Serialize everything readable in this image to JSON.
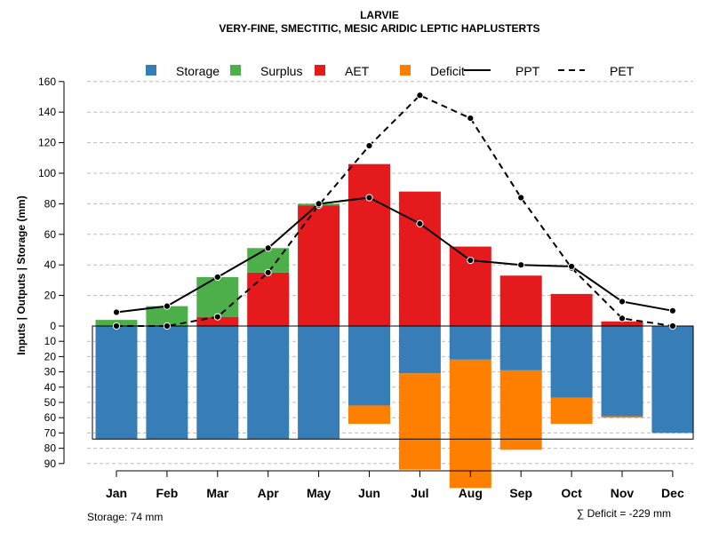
{
  "chart_data": {
    "type": "bar",
    "title": "LARVIE",
    "subtitle": "VERY-FINE, SMECTITIC, MESIC ARIDIC LEPTIC HAPLUSTERTS",
    "ylabel": "Inputs | Outputs | Storage    (mm)",
    "categories": [
      "Jan",
      "Feb",
      "Mar",
      "Apr",
      "May",
      "Jun",
      "Jul",
      "Aug",
      "Sep",
      "Oct",
      "Nov",
      "Dec"
    ],
    "upper_ylim": [
      0,
      160
    ],
    "upper_ticks": [
      "0",
      "20",
      "40",
      "60",
      "80",
      "100",
      "120",
      "140",
      "160"
    ],
    "lower_ylim": [
      0,
      90
    ],
    "lower_ticks": [
      "10",
      "20",
      "30",
      "40",
      "50",
      "60",
      "70",
      "80",
      "90"
    ],
    "grid": true,
    "legend": [
      {
        "name": "Storage",
        "kind": "box",
        "color": "#377EB8"
      },
      {
        "name": "Surplus",
        "kind": "box",
        "color": "#4DAF4A"
      },
      {
        "name": "AET",
        "kind": "box",
        "color": "#E41A1C"
      },
      {
        "name": "Deficit",
        "kind": "box",
        "color": "#FF7F00"
      },
      {
        "name": "PPT",
        "kind": "solid-line",
        "color": "#000000"
      },
      {
        "name": "PET",
        "kind": "dashed-line",
        "color": "#000000"
      }
    ],
    "series": {
      "AET": [
        0,
        0,
        6,
        35,
        79,
        106,
        88,
        52,
        33,
        21,
        3,
        0
      ],
      "Surplus": [
        4,
        13,
        26,
        16,
        1,
        0,
        0,
        0,
        0,
        0,
        0,
        0
      ],
      "Storage": [
        74,
        74,
        74,
        74,
        74,
        52,
        31,
        22,
        29,
        47,
        59,
        70
      ],
      "Deficit": [
        0,
        0,
        0,
        0,
        0,
        12,
        63,
        84,
        52,
        17,
        1,
        0
      ],
      "PPT": [
        9,
        13,
        32,
        51,
        80,
        84,
        67,
        43,
        40,
        39,
        16,
        10
      ],
      "PET": [
        0,
        0,
        6,
        35,
        79,
        118,
        151,
        136,
        84,
        38,
        5,
        0
      ]
    },
    "footer_left": "Storage: 74 mm",
    "footer_right": "∑ Deficit = -229 mm"
  }
}
